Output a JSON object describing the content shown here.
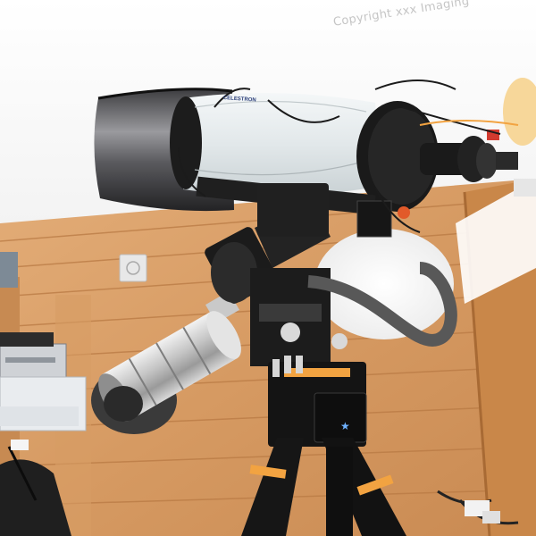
{
  "photo": {
    "subject": "telescope",
    "watermark_text": "Copyright xxx Imaging",
    "tube_brand_text": "CELESTRON",
    "mount_logo_glyph": "★",
    "colors": {
      "sky": "#fbfbfb",
      "wood": "#d9a06c",
      "wood_dark": "#b97a44",
      "tube": "#e8eef0",
      "dew_shield": "#2c2c2e",
      "metal": "#c9c9c9",
      "mount_black": "#161616",
      "accent_orange": "#f2a341"
    }
  }
}
